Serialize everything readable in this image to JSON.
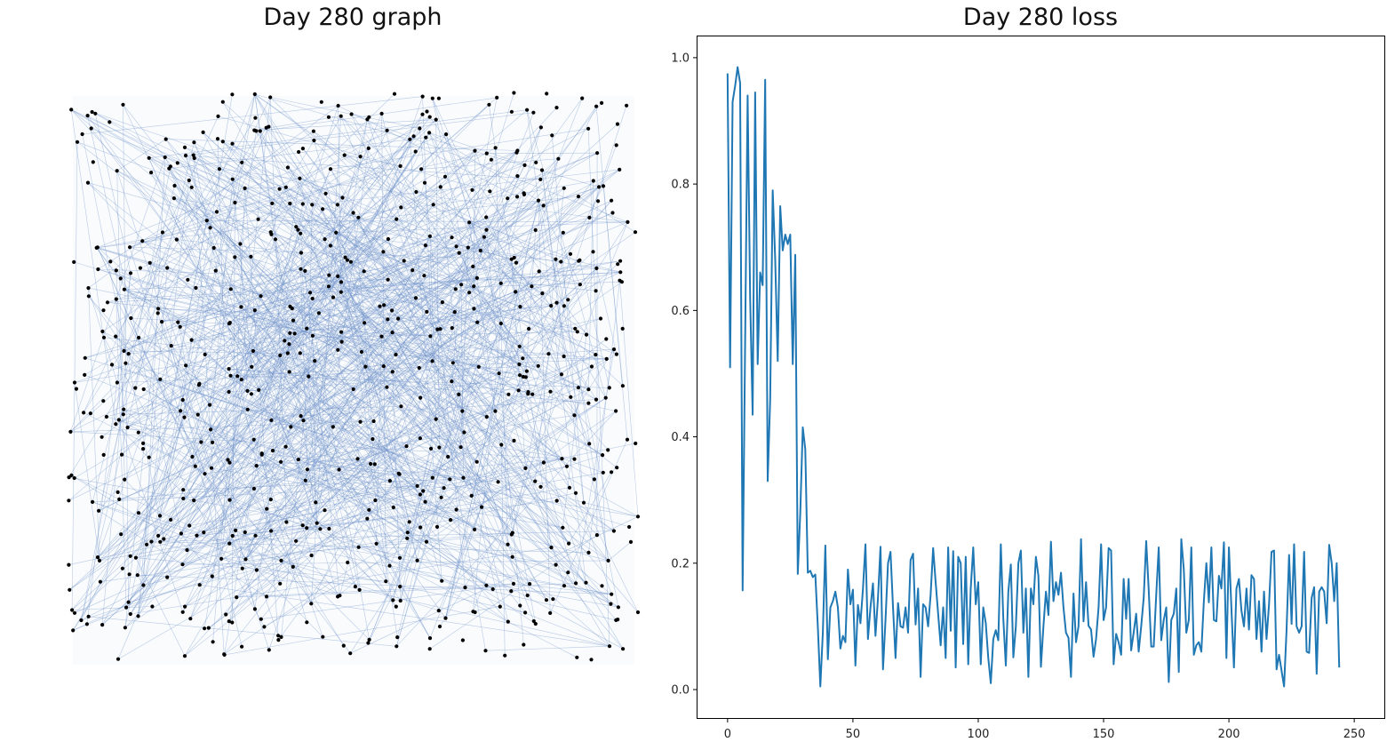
{
  "graph_panel": {
    "title": "Day 280 graph"
  },
  "loss_panel": {
    "title": "Day 280 loss"
  },
  "colors": {
    "node": "#000000",
    "edge": "#6a8fc8",
    "line": "#1f77b4"
  },
  "chart_data": [
    {
      "type": "network",
      "title": "Day 280 graph",
      "node_count": 700,
      "edge_count": 900,
      "axes": "off"
    },
    {
      "type": "line",
      "title": "Day 280 loss",
      "xlabel": "",
      "ylabel": "",
      "xlim": [
        -12,
        262
      ],
      "ylim": [
        -0.045,
        1.035
      ],
      "xticks": [
        0,
        50,
        100,
        150,
        200,
        250
      ],
      "yticks": [
        0.0,
        0.2,
        0.4,
        0.6,
        0.8,
        1.0
      ],
      "series": [
        {
          "x_start": 0,
          "values": [
            0.975,
            0.51,
            0.93,
            0.955,
            0.985,
            0.96,
            0.157,
            0.55,
            0.94,
            0.62,
            0.435,
            0.945,
            0.515,
            0.66,
            0.64,
            0.965,
            0.33,
            0.46,
            0.79,
            0.68,
            0.52,
            0.765,
            0.695,
            0.72,
            0.705,
            0.72,
            0.515,
            0.688,
            0.183,
            0.28,
            0.415,
            0.38,
            0.185,
            0.188,
            0.178,
            0.182,
            0.1,
            0.005,
            0.09,
            0.228,
            0.048,
            0.13,
            0.14,
            0.155,
            0.13,
            0.065,
            0.085,
            0.075,
            0.19,
            0.135,
            0.158,
            0.038,
            0.134,
            0.105,
            0.159,
            0.23,
            0.08,
            0.13,
            0.168,
            0.085,
            0.145,
            0.226,
            0.032,
            0.11,
            0.2,
            0.218,
            0.13,
            0.05,
            0.137,
            0.1,
            0.098,
            0.13,
            0.09,
            0.205,
            0.215,
            0.103,
            0.16,
            0.02,
            0.135,
            0.13,
            0.1,
            0.15,
            0.224,
            0.17,
            0.12,
            0.07,
            0.13,
            0.05,
            0.225,
            0.093,
            0.219,
            0.035,
            0.21,
            0.2,
            0.072,
            0.21,
            0.04,
            0.16,
            0.225,
            0.135,
            0.17,
            0.04,
            0.13,
            0.105,
            0.05,
            0.01,
            0.08,
            0.094,
            0.078,
            0.23,
            0.112,
            0.038,
            0.155,
            0.198,
            0.051,
            0.1,
            0.2,
            0.22,
            0.09,
            0.16,
            0.02,
            0.16,
            0.135,
            0.21,
            0.18,
            0.036,
            0.1,
            0.155,
            0.118,
            0.234,
            0.14,
            0.17,
            0.15,
            0.185,
            0.13,
            0.09,
            0.082,
            0.02,
            0.152,
            0.075,
            0.1,
            0.238,
            0.108,
            0.17,
            0.101,
            0.095,
            0.052,
            0.08,
            0.13,
            0.23,
            0.11,
            0.13,
            0.224,
            0.22,
            0.04,
            0.088,
            0.075,
            0.055,
            0.175,
            0.112,
            0.175,
            0.062,
            0.09,
            0.12,
            0.06,
            0.1,
            0.145,
            0.235,
            0.158,
            0.068,
            0.068,
            0.15,
            0.225,
            0.078,
            0.11,
            0.13,
            0.012,
            0.11,
            0.12,
            0.16,
            0.028,
            0.238,
            0.19,
            0.09,
            0.11,
            0.225,
            0.055,
            0.07,
            0.075,
            0.06,
            0.14,
            0.2,
            0.138,
            0.225,
            0.11,
            0.108,
            0.18,
            0.16,
            0.233,
            0.05,
            0.225,
            0.128,
            0.035,
            0.16,
            0.175,
            0.125,
            0.1,
            0.16,
            0.095,
            0.181,
            0.175,
            0.08,
            0.14,
            0.06,
            0.155,
            0.08,
            0.135,
            0.218,
            0.22,
            0.032,
            0.055,
            0.03,
            0.005,
            0.095,
            0.213,
            0.104,
            0.23,
            0.1,
            0.09,
            0.1,
            0.218,
            0.06,
            0.058,
            0.145,
            0.162,
            0.025,
            0.155,
            0.162,
            0.155,
            0.105,
            0.229,
            0.2,
            0.14,
            0.2,
            0.035
          ]
        }
      ]
    }
  ]
}
